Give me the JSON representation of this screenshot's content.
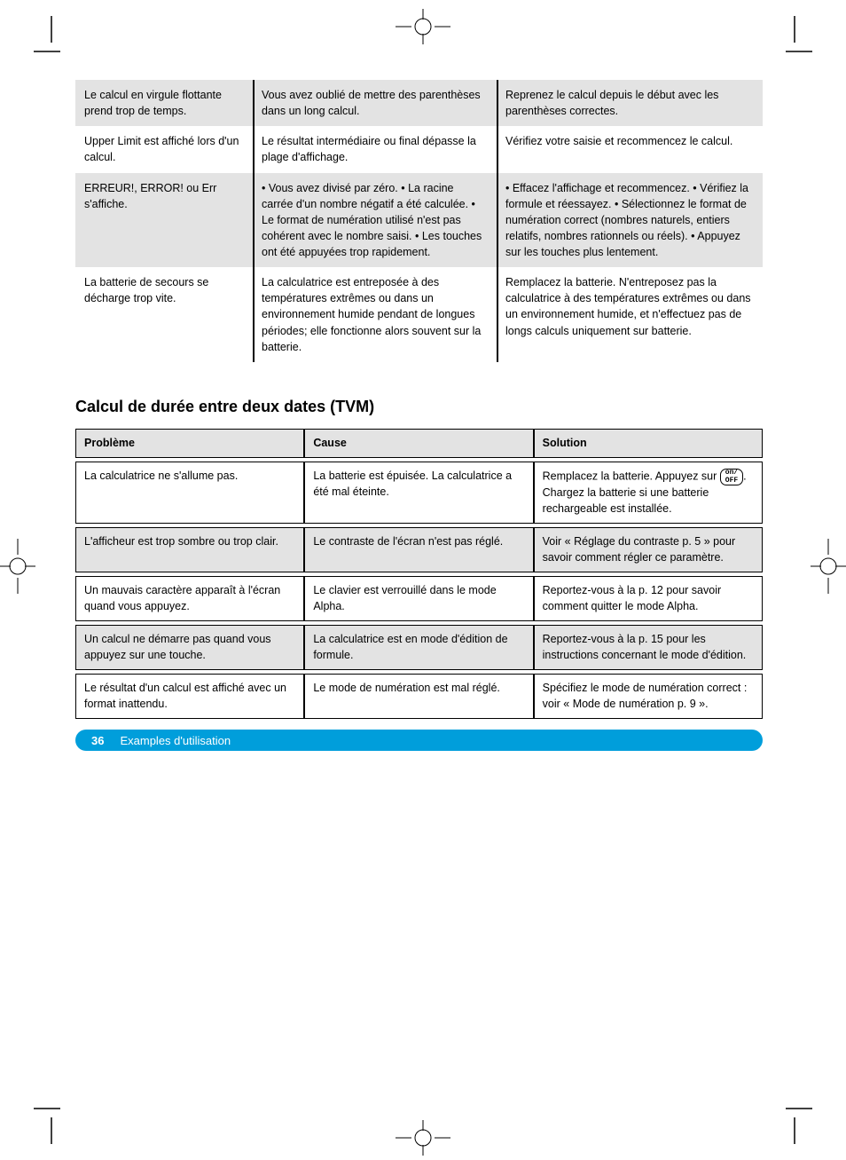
{
  "colors": {
    "gray": "#e3e3e3",
    "blue": "#009edb",
    "line": "#000000"
  },
  "top_table": {
    "vlines": [
      200,
      475
    ],
    "rows": [
      {
        "style": "gray",
        "c1": "Le calcul en virgule flottante prend trop de temps.",
        "c2": "Vous avez oublié de mettre des parenthèses dans un long calcul.",
        "c3": "Reprenez le calcul depuis le début avec les parenthèses correctes."
      },
      {
        "style": "white",
        "c1": "Upper Limit est affiché lors d'un calcul.",
        "c2": "Le résultat intermédiaire ou final dépasse la plage d'affichage.",
        "c3": "Vérifiez votre saisie et recommencez le calcul."
      },
      {
        "style": "gray",
        "c1": "ERREUR!, ERROR! ou Err s'affiche.",
        "c2": "• Vous avez divisé par zéro.\n• La racine carrée d'un nombre négatif a été calculée.\n• Le format de numération utilisé n'est pas cohérent avec le nombre saisi.\n• Les touches ont été appuyées trop rapidement.",
        "c3": "• Effacez l'affichage et recommencez.\n• Vérifiez la formule et réessayez.\n• Sélectionnez le format de numération correct (nombres naturels, entiers relatifs, nombres rationnels ou réels).\n• Appuyez sur les touches plus lentement."
      },
      {
        "style": "white",
        "c1": "La batterie de secours se décharge trop vite.",
        "c2": "La calculatrice est entreposée à des températures extrêmes ou dans un environnement humide pendant de longues périodes; elle fonctionne alors souvent sur la batterie.",
        "c3": "Remplacez la batterie. N'entreposez pas la calculatrice à des températures extrêmes ou dans un environnement humide, et n'effectuez pas de longs calculs uniquement sur batterie."
      }
    ]
  },
  "lower_heading": "Calcul de durée entre deux dates (TVM)",
  "bottom_table": {
    "header": {
      "c1": "Problème",
      "c2": "Cause",
      "c3": "Solution"
    },
    "rows": [
      {
        "style": "white",
        "c1": "La calculatrice ne s'allume pas.",
        "c2": "La batterie est épuisée. La calculatrice a été mal éteinte.",
        "c3": "Remplacez la batterie. Appuyez sur {ONOFF}. Chargez la batterie si une batterie rechargeable est installée."
      },
      {
        "style": "gray",
        "c1": "L'afficheur est trop sombre ou trop clair.",
        "c2": "Le contraste de l'écran n'est pas réglé.",
        "c3": "Voir « Réglage du contraste p. 5 » pour savoir comment régler ce paramètre."
      },
      {
        "style": "white",
        "c1": "Un mauvais caractère apparaît à l'écran quand vous appuyez.",
        "c2": "Le clavier est verrouillé dans le mode Alpha.",
        "c3": "Reportez-vous à la p. 12 pour savoir comment quitter le mode Alpha."
      },
      {
        "style": "gray",
        "c1": "Un calcul ne démarre pas quand vous appuyez sur une touche.",
        "c2": "La calculatrice est en mode d'édition de formule.",
        "c3": "Reportez-vous à la p. 15 pour les instructions concernant le mode d'édition."
      },
      {
        "style": "white",
        "c1": "Le résultat d'un calcul est affiché avec un format inattendu.",
        "c2": "Le mode de numération est mal réglé.",
        "c3": "Spécifiez le mode de numération correct : voir « Mode de numération p. 9 »."
      }
    ]
  },
  "footer": {
    "page": "36",
    "title": "Examples d'utilisation"
  }
}
